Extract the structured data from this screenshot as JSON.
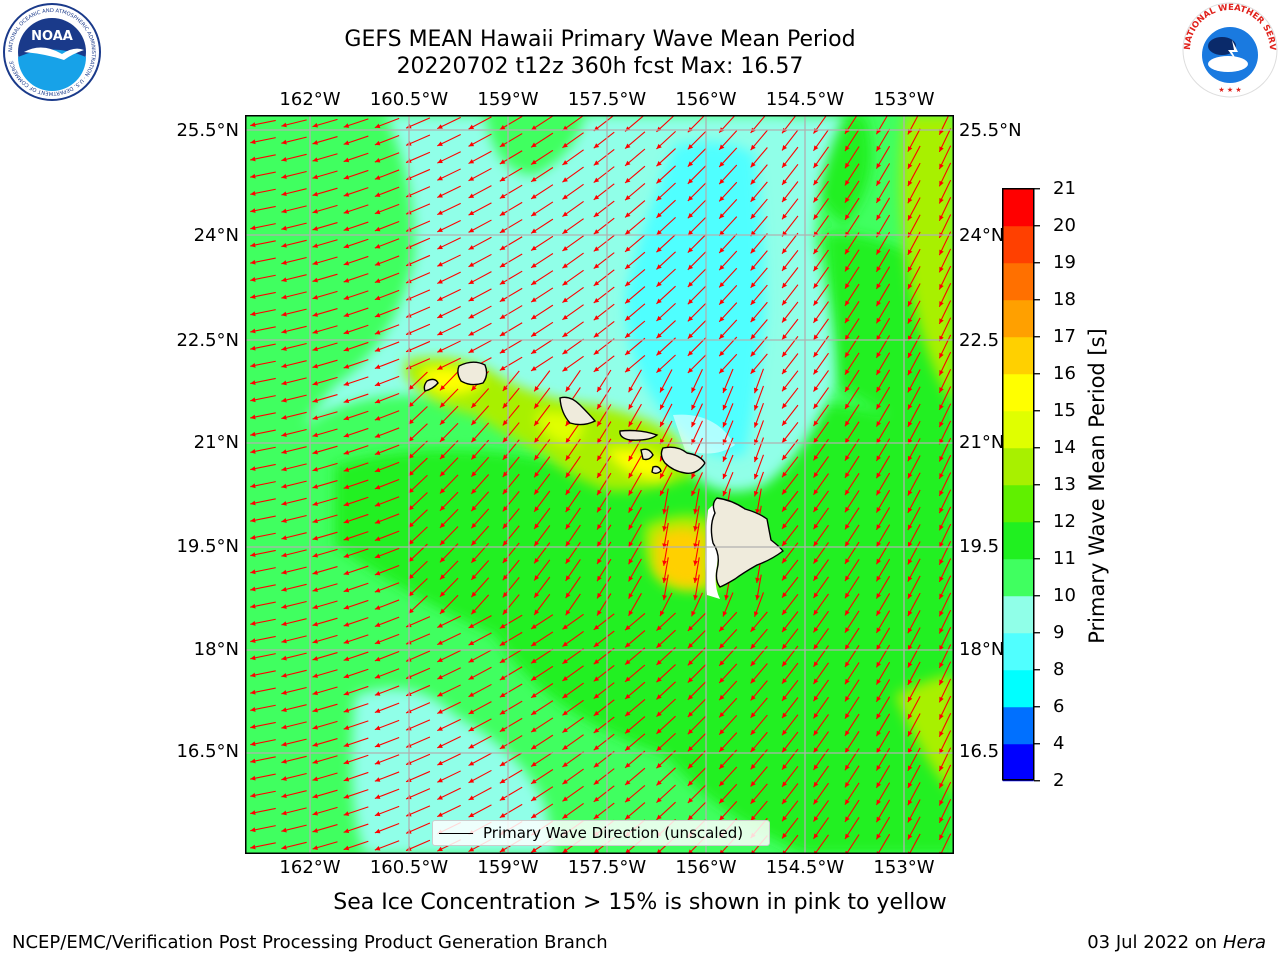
{
  "title": {
    "line1": "GEFS MEAN Hawaii Primary Wave Mean Period",
    "line2": "20220702 t12z 360h fcst   Max: 16.57"
  },
  "logos": {
    "noaa": {
      "text": "NOAA",
      "ring_text": "NATIONAL OCEANIC AND ATMOSPHERIC ADMINISTRATION · U.S. DEPARTMENT OF COMMERCE"
    },
    "nws": {
      "ring_text": "NATIONAL WEATHER SERVICE"
    }
  },
  "map": {
    "lon_labels": [
      "162°W",
      "160.5°W",
      "159°W",
      "157.5°W",
      "156°W",
      "154.5°W",
      "153°W"
    ],
    "lat_labels_left": [
      "25.5°N",
      "24°N",
      "22.5°N",
      "21°N",
      "19.5°N",
      "18°N",
      "16.5°N"
    ],
    "lat_labels_right": [
      "25.5°N",
      "24°N",
      "22.5",
      "21°N",
      "19.5",
      "18°N",
      "16.5"
    ],
    "arrow_color": "#ff0000",
    "land_color": "#efebdc",
    "legend_label": "Primary Wave Direction (unscaled)"
  },
  "colorbar": {
    "label": "Primary Wave Mean Period [s]",
    "ticks": [
      "2",
      "4",
      "6",
      "8",
      "9",
      "10",
      "11",
      "12",
      "13",
      "14",
      "15",
      "16",
      "17",
      "18",
      "19",
      "20",
      "21"
    ],
    "colors": [
      "#0000ff",
      "#0070ff",
      "#00ffff",
      "#50ffff",
      "#90ffe8",
      "#40ff60",
      "#20f020",
      "#60f000",
      "#a8f000",
      "#e0ff00",
      "#ffff00",
      "#ffd000",
      "#ffa000",
      "#ff7000",
      "#ff4000",
      "#ff0000"
    ]
  },
  "notes": {
    "sea_ice": "Sea Ice Concentration > 15% is shown in pink to yellow"
  },
  "footer": {
    "left": "NCEP/EMC/Verification Post Processing Product Generation Branch",
    "right_date": "03 Jul 2022 on ",
    "right_host": "Hera"
  }
}
